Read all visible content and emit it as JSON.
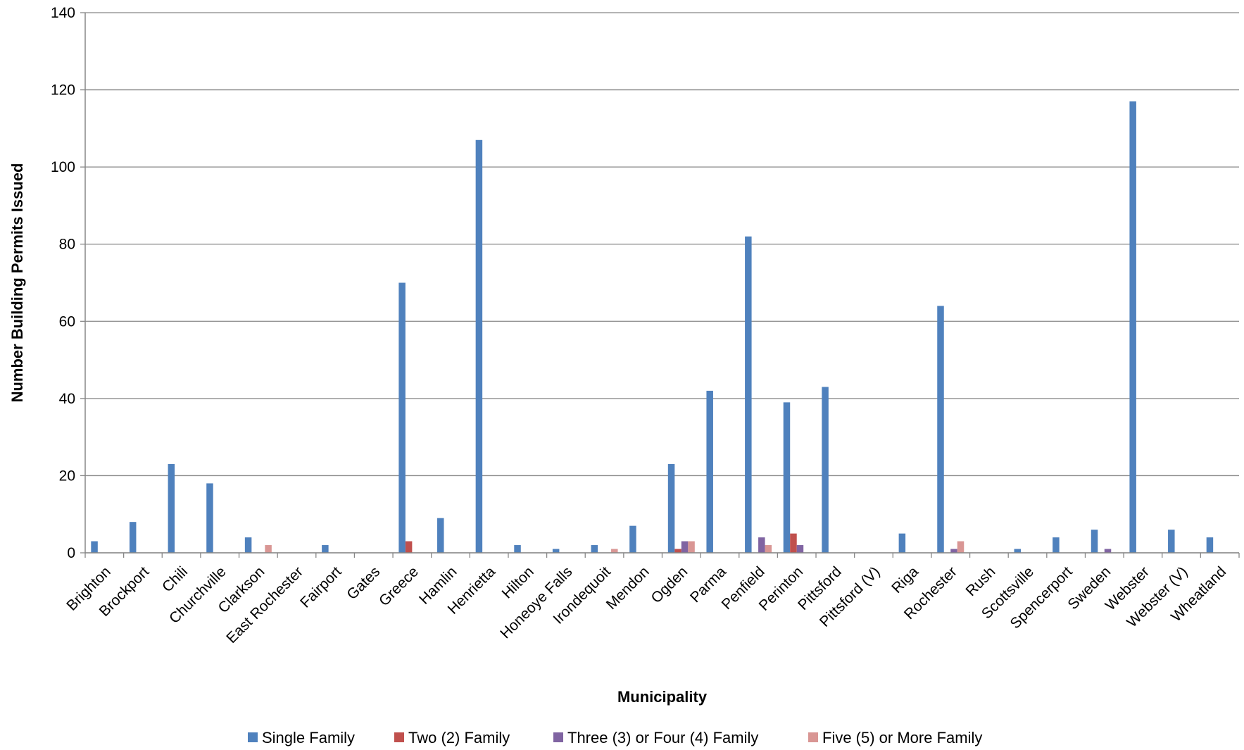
{
  "chart_data": {
    "type": "bar",
    "title": "",
    "xlabel": "Municipality",
    "ylabel": "Number Building Permits Issued",
    "ylim": [
      0,
      140
    ],
    "yticks": [
      0,
      20,
      40,
      60,
      80,
      100,
      120,
      140
    ],
    "grid": true,
    "legend_position": "bottom",
    "categories": [
      "Brighton",
      "Brockport",
      "Chili",
      "Churchville",
      "Clarkson",
      "East Rochester",
      "Fairport",
      "Gates",
      "Greece",
      "Hamlin",
      "Henrietta",
      "Hilton",
      "Honeoye Falls",
      "Irondequoit",
      "Mendon",
      "Ogden",
      "Parma",
      "Penfield",
      "Perinton",
      "Pittsford",
      "Pittsford (V)",
      "Riga",
      "Rochester",
      "Rush",
      "Scottsville",
      "Spencerport",
      "Sweden",
      "Webster",
      "Webster (V)",
      "Wheatland"
    ],
    "series": [
      {
        "name": "Single Family",
        "color": "#4F81BD",
        "values": [
          3,
          8,
          23,
          18,
          4,
          0,
          2,
          0,
          70,
          9,
          107,
          2,
          1,
          2,
          7,
          23,
          42,
          82,
          39,
          43,
          0,
          5,
          64,
          0,
          1,
          4,
          6,
          117,
          6,
          4
        ]
      },
      {
        "name": "Two (2) Family",
        "color": "#C0504D",
        "values": [
          0,
          0,
          0,
          0,
          0,
          0,
          0,
          0,
          3,
          0,
          0,
          0,
          0,
          0,
          0,
          1,
          0,
          0,
          5,
          0,
          0,
          0,
          0,
          0,
          0,
          0,
          0,
          0,
          0,
          0
        ]
      },
      {
        "name": "Three (3) or Four (4) Family",
        "color": "#8064A2",
        "values": [
          0,
          0,
          0,
          0,
          0,
          0,
          0,
          0,
          0,
          0,
          0,
          0,
          0,
          0,
          0,
          3,
          0,
          4,
          2,
          0,
          0,
          0,
          1,
          0,
          0,
          0,
          1,
          0,
          0,
          0
        ]
      },
      {
        "name": "Five (5) or More Family",
        "color": "#D99694",
        "values": [
          0,
          0,
          0,
          0,
          2,
          0,
          0,
          0,
          0,
          0,
          0,
          0,
          0,
          1,
          0,
          3,
          0,
          2,
          0,
          0,
          0,
          0,
          3,
          0,
          0,
          0,
          0,
          0,
          0,
          0
        ]
      }
    ]
  }
}
